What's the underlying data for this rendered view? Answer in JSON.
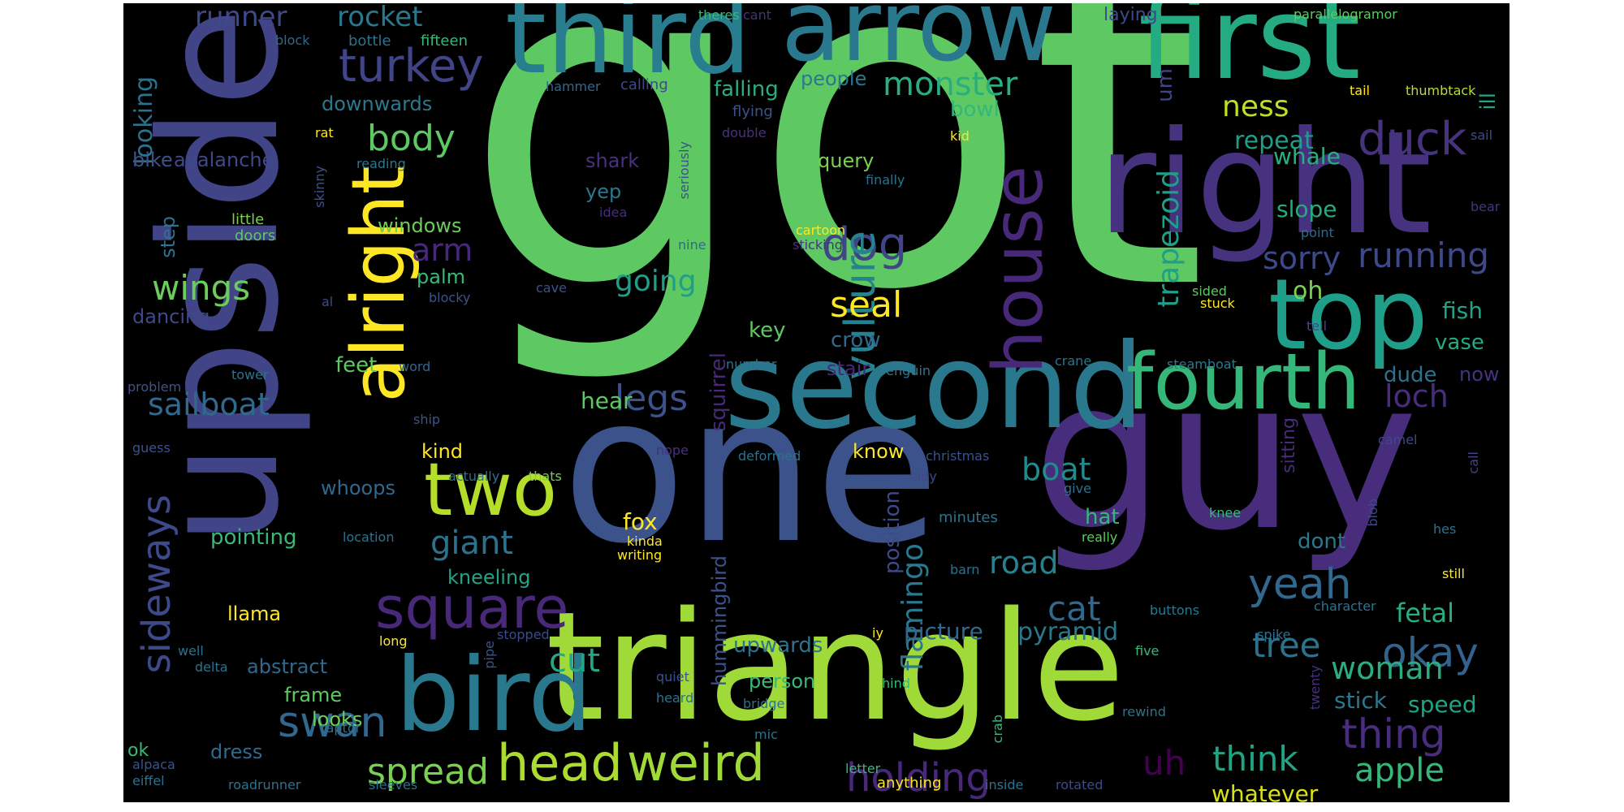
{
  "colors": {
    "background": "#000000",
    "page": "#ffffff"
  },
  "words": {
    "got": "got",
    "one": "one",
    "upside": "upside",
    "guy": "guy",
    "triangle": "triangle",
    "right": "right",
    "second": "second",
    "first": "first",
    "third": "third",
    "arrow": "arrow",
    "top": "top",
    "bird": "bird",
    "alright": "alright",
    "fourth": "fourth",
    "house": "house",
    "two": "two",
    "square": "square",
    "head": "head",
    "weird": "weird",
    "turkey": "turkey",
    "duck": "duck",
    "dog": "dog",
    "vulture": "vulture",
    "legs": "legs",
    "seal": "seal",
    "sideways": "sideways",
    "swan": "swan",
    "spread": "spread",
    "holding": "holding",
    "thing": "thing",
    "yeah": "yeah",
    "okay": "okay",
    "tree": "tree",
    "flamingo": "flamingo",
    "trapezoid": "trapezoid",
    "body": "body",
    "monster": "monster",
    "running": "running",
    "sorry": "sorry",
    "woman": "woman",
    "apple": "apple",
    "think": "think",
    "cut": "cut",
    "cat": "cat",
    "road": "road",
    "boat": "boat",
    "giant": "giant",
    "sailboat": "sailboat",
    "wings": "wings",
    "going": "going",
    "arm": "arm",
    "crow": "crow",
    "ness": "ness",
    "loch": "loch",
    "uh": "uh",
    "runner": "runner",
    "rocket": "rocket",
    "looking": "looking",
    "hummingbird": "hummingbird",
    "squirrel": "squirrel",
    "position": "position",
    "pyramid": "pyramid",
    "picture": "picture",
    "upwards": "upwards",
    "whatever": "whatever",
    "fetal": "fetal",
    "stick": "stick",
    "speed": "speed",
    "dude": "dude",
    "fish": "fish",
    "vase": "vase",
    "whale": "whale",
    "slope": "slope",
    "repeat": "repeat",
    "oh": "oh",
    "fox": "fox",
    "hear": "hear",
    "kind": "kind",
    "know": "know",
    "falling": "falling",
    "people": "people",
    "bowl": "bowl",
    "query": "query",
    "yep": "yep",
    "shark": "shark",
    "key": "key",
    "stair": "stair",
    "feet": "feet",
    "palm": "palm",
    "windows": "windows",
    "llama": "llama",
    "pointing": "pointing",
    "whoops": "whoops",
    "kneeling": "kneeling",
    "abstract": "abstract",
    "frame": "frame",
    "looks": "looks",
    "dress": "dress",
    "downwards": "downwards",
    "bike": "bike",
    "avalanche": "avalanche",
    "dancing": "dancing",
    "step": "step",
    "um": "um",
    "hat": "hat",
    "dont": "dont",
    "person": "person",
    "now": "now",
    "sitting": "sitting",
    "ill": "ill",
    "laying": "laying",
    "parallelogramor": "parallelogramor",
    "theres": "theres",
    "cant": "cant",
    "block": "block",
    "bottle": "bottle",
    "fifteen": "fifteen",
    "hammer": "hammer",
    "calling": "calling",
    "flying": "flying",
    "tail": "tail",
    "thumbtack": "thumbtack",
    "rat": "rat",
    "double": "double",
    "kid": "kid",
    "sail": "sail",
    "reading": "reading",
    "skinny": "skinny",
    "finally": "finally",
    "seriously": "seriously",
    "little": "little",
    "doors": "doors",
    "idea": "idea",
    "cartoon": "cartoon",
    "sticking": "sticking",
    "nine": "nine",
    "point": "point",
    "bear": "bear",
    "blocky": "blocky",
    "cave": "cave",
    "al": "al",
    "sided": "sided",
    "stuck": "stuck",
    "tell": "tell",
    "problem": "problem",
    "tower": "tower",
    "word": "word",
    "number": "number",
    "penguin": "penguin",
    "crane": "crane",
    "steamboat": "steamboat",
    "guess": "guess",
    "ship": "ship",
    "nope": "nope",
    "actually": "actually",
    "thats": "thats",
    "deformed": "deformed",
    "christmas": "christmas",
    "lady": "lady",
    "camel": "camel",
    "call": "call",
    "minutes": "minutes",
    "give": "give",
    "knee": "knee",
    "blob": "blob",
    "hes": "hes",
    "location": "location",
    "really": "really",
    "kinda": "kinda",
    "writing": "writing",
    "barn": "barn",
    "still": "still",
    "character": "character",
    "buttons": "buttons",
    "long": "long",
    "well": "well",
    "delta": "delta",
    "pipe": "pipe",
    "stopped": "stopped",
    "iy": "iy",
    "spike": "spike",
    "five": "five",
    "quiet": "quiet",
    "heard": "heard",
    "hind": "hind",
    "twenty": "twenty",
    "bridge": "bridge",
    "ok": "ok",
    "raptor": "raptor",
    "mic": "mic",
    "crab": "crab",
    "rewind": "rewind",
    "alpaca": "alpaca",
    "eiffel": "eiffel",
    "roadrunner": "roadrunner",
    "sleeves": "sleeves",
    "letter": "letter",
    "anything": "anything",
    "inside": "inside",
    "rotated": "rotated"
  }
}
